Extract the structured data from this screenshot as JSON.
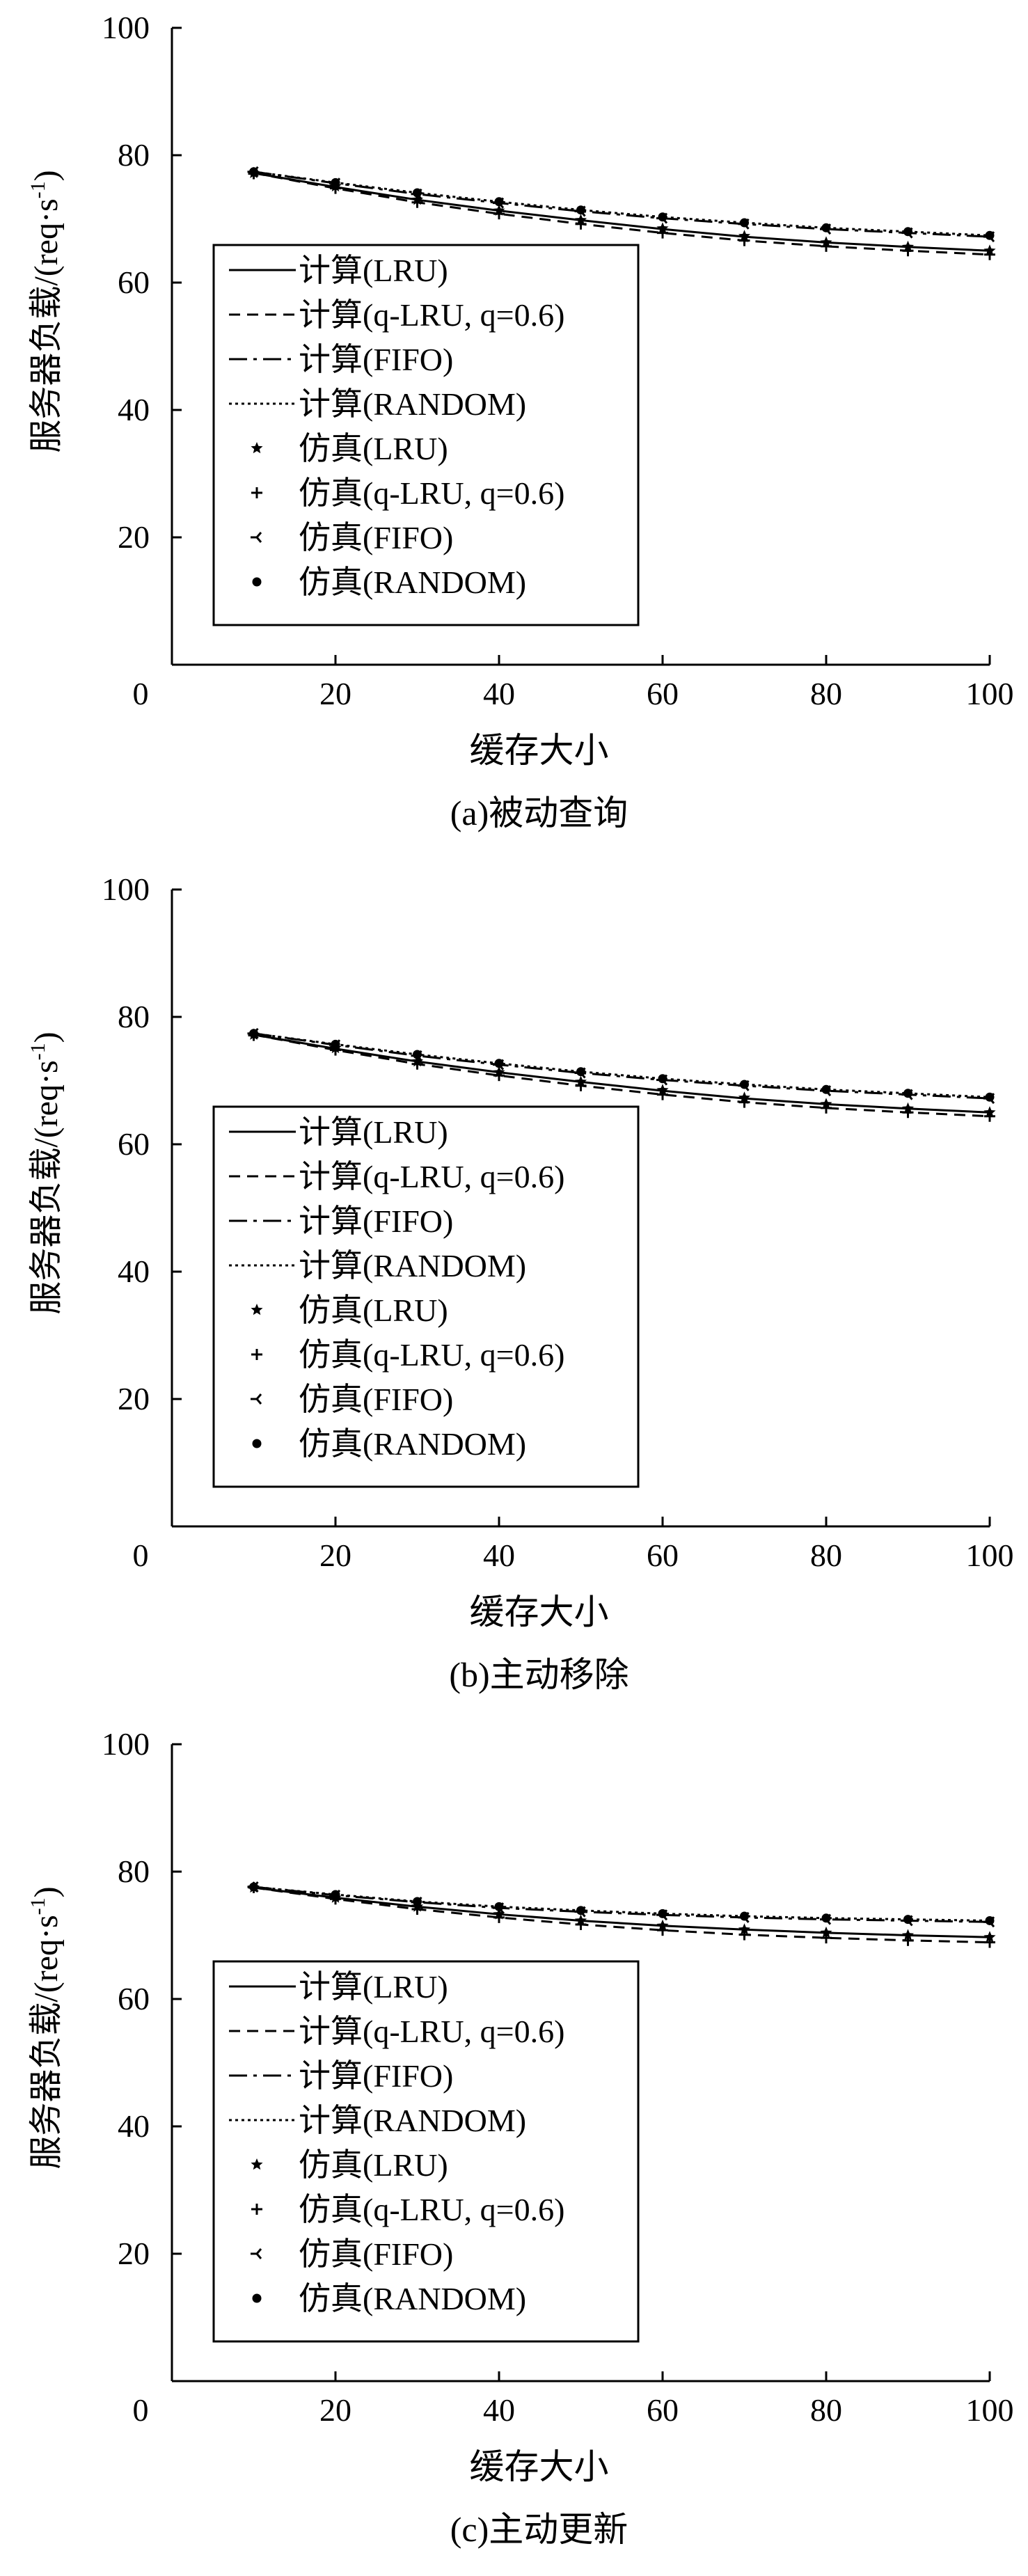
{
  "chart_data": [
    {
      "type": "line",
      "caption": "(a)被动查询",
      "xlabel": "缓存大小",
      "ylabel": "服务器负载/(req·s",
      "ylabel_sup": "-1",
      "ylabel_close": ")",
      "xlim": [
        0,
        100
      ],
      "ylim": [
        0,
        100
      ],
      "xticks": [
        0,
        20,
        40,
        60,
        80,
        100
      ],
      "yticks": [
        20,
        40,
        60,
        80,
        100
      ],
      "x": [
        10,
        20,
        30,
        40,
        50,
        60,
        70,
        80,
        90,
        100
      ],
      "series": [
        {
          "name": "计算(LRU)",
          "kind": "line",
          "style": "solid",
          "values": [
            77.2,
            75.0,
            73.0,
            71.3,
            69.8,
            68.4,
            67.2,
            66.3,
            65.6,
            65.0
          ]
        },
        {
          "name": "计算(q-LRU, q=0.6)",
          "kind": "line",
          "style": "dashed",
          "values": [
            77.2,
            74.8,
            72.6,
            70.8,
            69.2,
            67.8,
            66.6,
            65.7,
            65.0,
            64.4
          ]
        },
        {
          "name": "计算(FIFO)",
          "kind": "line",
          "style": "dashdot",
          "values": [
            77.4,
            75.6,
            73.9,
            72.5,
            71.2,
            70.1,
            69.2,
            68.4,
            67.8,
            67.2
          ]
        },
        {
          "name": "计算(RANDOM)",
          "kind": "line",
          "style": "dotted",
          "values": [
            77.4,
            75.7,
            74.1,
            72.7,
            71.4,
            70.3,
            69.4,
            68.6,
            68.0,
            67.4
          ]
        },
        {
          "name": "仿真(LRU)",
          "kind": "marker",
          "marker": "star",
          "values": [
            77.2,
            75.1,
            73.0,
            71.3,
            69.8,
            68.5,
            67.3,
            66.3,
            65.6,
            65.0
          ]
        },
        {
          "name": "仿真(q-LRU, q=0.6)",
          "kind": "marker",
          "marker": "plus",
          "values": [
            77.1,
            74.8,
            72.6,
            70.8,
            69.2,
            67.8,
            66.6,
            65.7,
            65.0,
            64.4
          ]
        },
        {
          "name": "仿真(FIFO)",
          "kind": "marker",
          "marker": "tri",
          "values": [
            77.4,
            75.6,
            73.9,
            72.5,
            71.2,
            70.1,
            69.2,
            68.4,
            67.8,
            67.2
          ]
        },
        {
          "name": "仿真(RANDOM)",
          "kind": "marker",
          "marker": "dot",
          "values": [
            77.4,
            75.7,
            74.1,
            72.7,
            71.4,
            70.3,
            69.4,
            68.6,
            68.0,
            67.4
          ]
        }
      ]
    },
    {
      "type": "line",
      "caption": "(b)主动移除",
      "xlabel": "缓存大小",
      "ylabel": "服务器负载/(req·s",
      "ylabel_sup": "-1",
      "ylabel_close": ")",
      "xlim": [
        0,
        100
      ],
      "ylim": [
        0,
        100
      ],
      "xticks": [
        0,
        20,
        40,
        60,
        80,
        100
      ],
      "yticks": [
        20,
        40,
        60,
        80,
        100
      ],
      "x": [
        10,
        20,
        30,
        40,
        50,
        60,
        70,
        80,
        90,
        100
      ],
      "series": [
        {
          "name": "计算(LRU)",
          "kind": "line",
          "style": "solid",
          "values": [
            77.2,
            75.0,
            73.0,
            71.3,
            69.8,
            68.4,
            67.2,
            66.3,
            65.6,
            65.0
          ]
        },
        {
          "name": "计算(q-LRU, q=0.6)",
          "kind": "line",
          "style": "dashed",
          "values": [
            77.2,
            74.8,
            72.6,
            70.8,
            69.2,
            67.8,
            66.6,
            65.7,
            65.0,
            64.4
          ]
        },
        {
          "name": "计算(FIFO)",
          "kind": "line",
          "style": "dashdot",
          "values": [
            77.4,
            75.6,
            73.9,
            72.5,
            71.2,
            70.1,
            69.2,
            68.4,
            67.8,
            67.2
          ]
        },
        {
          "name": "计算(RANDOM)",
          "kind": "line",
          "style": "dotted",
          "values": [
            77.4,
            75.7,
            74.1,
            72.7,
            71.4,
            70.3,
            69.4,
            68.6,
            68.0,
            67.4
          ]
        },
        {
          "name": "仿真(LRU)",
          "kind": "marker",
          "marker": "star",
          "values": [
            77.2,
            75.1,
            73.0,
            71.3,
            69.8,
            68.5,
            67.3,
            66.3,
            65.6,
            65.0
          ]
        },
        {
          "name": "仿真(q-LRU, q=0.6)",
          "kind": "marker",
          "marker": "plus",
          "values": [
            77.1,
            74.8,
            72.6,
            70.8,
            69.2,
            67.8,
            66.6,
            65.7,
            65.0,
            64.4
          ]
        },
        {
          "name": "仿真(FIFO)",
          "kind": "marker",
          "marker": "tri",
          "values": [
            77.4,
            75.6,
            73.9,
            72.5,
            71.2,
            70.1,
            69.2,
            68.4,
            67.8,
            67.2
          ]
        },
        {
          "name": "仿真(RANDOM)",
          "kind": "marker",
          "marker": "dot",
          "values": [
            77.4,
            75.7,
            74.1,
            72.7,
            71.4,
            70.3,
            69.4,
            68.6,
            68.0,
            67.4
          ]
        }
      ]
    },
    {
      "type": "line",
      "caption": "(c)主动更新",
      "xlabel": "缓存大小",
      "ylabel": "服务器负载/(req·s",
      "ylabel_sup": "-1",
      "ylabel_close": ")",
      "xlim": [
        0,
        100
      ],
      "ylim": [
        0,
        100
      ],
      "xticks": [
        0,
        20,
        40,
        60,
        80,
        100
      ],
      "yticks": [
        20,
        40,
        60,
        80,
        100
      ],
      "x": [
        10,
        20,
        30,
        40,
        50,
        60,
        70,
        80,
        90,
        100
      ],
      "series": [
        {
          "name": "计算(LRU)",
          "kind": "line",
          "style": "solid",
          "values": [
            77.5,
            75.9,
            74.5,
            73.3,
            72.3,
            71.5,
            70.9,
            70.4,
            70.0,
            69.7
          ]
        },
        {
          "name": "计算(q-LRU, q=0.6)",
          "kind": "line",
          "style": "dashed",
          "values": [
            77.5,
            75.7,
            74.1,
            72.8,
            71.7,
            70.8,
            70.1,
            69.6,
            69.2,
            68.9
          ]
        },
        {
          "name": "计算(FIFO)",
          "kind": "line",
          "style": "dashdot",
          "values": [
            77.6,
            76.3,
            75.2,
            74.3,
            73.7,
            73.2,
            72.8,
            72.5,
            72.3,
            72.1
          ]
        },
        {
          "name": "计算(RANDOM)",
          "kind": "line",
          "style": "dotted",
          "values": [
            77.6,
            76.4,
            75.3,
            74.5,
            73.9,
            73.4,
            73.0,
            72.7,
            72.5,
            72.3
          ]
        },
        {
          "name": "仿真(LRU)",
          "kind": "marker",
          "marker": "star",
          "values": [
            77.5,
            75.9,
            74.5,
            73.3,
            72.3,
            71.5,
            70.9,
            70.4,
            70.0,
            69.7
          ]
        },
        {
          "name": "仿真(q-LRU, q=0.6)",
          "kind": "marker",
          "marker": "plus",
          "values": [
            77.5,
            75.7,
            74.1,
            72.8,
            71.7,
            70.8,
            70.1,
            69.6,
            69.2,
            68.9
          ]
        },
        {
          "name": "仿真(FIFO)",
          "kind": "marker",
          "marker": "tri",
          "values": [
            77.6,
            76.3,
            75.2,
            74.3,
            73.7,
            73.2,
            72.8,
            72.5,
            72.3,
            72.1
          ]
        },
        {
          "name": "仿真(RANDOM)",
          "kind": "marker",
          "marker": "dot",
          "values": [
            77.6,
            76.4,
            75.3,
            74.5,
            73.9,
            73.4,
            73.0,
            72.7,
            72.5,
            72.3
          ]
        }
      ]
    }
  ]
}
